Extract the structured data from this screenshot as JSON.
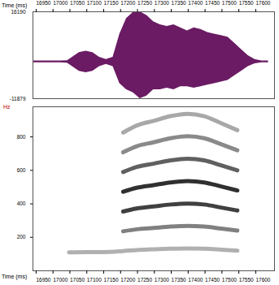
{
  "chart_data": [
    {
      "type": "area",
      "xlabel": "Time (ms)",
      "x": [
        16945,
        16965,
        16985,
        17005,
        17025,
        17045,
        17060,
        17080,
        17100,
        17120,
        17140,
        17160,
        17180,
        17200,
        17220,
        17240,
        17260,
        17280,
        17300,
        17320,
        17340,
        17360,
        17380,
        17400,
        17420,
        17440,
        17460,
        17480,
        17500,
        17520,
        17540,
        17560,
        17580,
        17600,
        17620,
        17640
      ],
      "upper": [
        300,
        300,
        300,
        300,
        300,
        400,
        1500,
        3000,
        3500,
        3000,
        1500,
        800,
        1500,
        9000,
        14000,
        16000,
        16190,
        15000,
        13000,
        12000,
        11500,
        12000,
        11000,
        10000,
        11000,
        10500,
        9500,
        9000,
        8500,
        8000,
        6000,
        4000,
        2000,
        800,
        300,
        300
      ],
      "lower": [
        -300,
        -300,
        -300,
        -300,
        -300,
        -400,
        -1500,
        -3000,
        -3500,
        -3000,
        -1500,
        -800,
        -1500,
        -7000,
        -9000,
        -10000,
        -11879,
        -11000,
        -9000,
        -9000,
        -8500,
        -9000,
        -8000,
        -8000,
        -8500,
        -8000,
        -7500,
        -7000,
        -6500,
        -6000,
        -4500,
        -3000,
        -1500,
        -600,
        -300,
        -300
      ],
      "color": "#6a1b63",
      "xlim": [
        16943,
        17658
      ],
      "xticks": [
        16950,
        17000,
        17050,
        17100,
        17150,
        17200,
        17250,
        17300,
        17350,
        17400,
        17450,
        17500,
        17550,
        17600
      ],
      "ylim": [
        -11879,
        16190
      ],
      "yticks": [
        -11879,
        16190
      ]
    },
    {
      "type": "line",
      "xlabel": "Time (ms)",
      "ylabel": "Hz",
      "x": [
        17050,
        17100,
        17150,
        17210,
        17250,
        17300,
        17350,
        17400,
        17450,
        17500,
        17548
      ],
      "series": [
        {
          "color": "#b0b0b0",
          "values": [
            110,
            112,
            112,
            118,
            124,
            128,
            132,
            134,
            132,
            126,
            120
          ]
        },
        {
          "color": "#808080",
          "values": [
            null,
            null,
            null,
            236,
            248,
            256,
            264,
            268,
            264,
            252,
            240
          ]
        },
        {
          "color": "#404040",
          "values": [
            null,
            null,
            null,
            354,
            372,
            384,
            396,
            402,
            396,
            378,
            360
          ]
        },
        {
          "color": "#303030",
          "values": [
            null,
            null,
            null,
            472,
            496,
            512,
            528,
            536,
            528,
            504,
            480
          ]
        },
        {
          "color": "#606060",
          "values": [
            null,
            null,
            null,
            590,
            620,
            640,
            660,
            670,
            660,
            630,
            600
          ]
        },
        {
          "color": "#8a8a8a",
          "values": [
            null,
            null,
            null,
            708,
            744,
            768,
            792,
            804,
            792,
            756,
            720
          ]
        },
        {
          "color": "#a8a8a8",
          "values": [
            null,
            null,
            null,
            826,
            868,
            896,
            924,
            938,
            924,
            882,
            840
          ]
        }
      ],
      "xlim": [
        16943,
        17658
      ],
      "xticks": [
        16950,
        17000,
        17050,
        17100,
        17150,
        17200,
        17250,
        17300,
        17350,
        17400,
        17450,
        17500,
        17550,
        17600
      ],
      "ylim": [
        0,
        980
      ],
      "yticks": [
        200,
        400,
        600,
        800
      ]
    }
  ]
}
